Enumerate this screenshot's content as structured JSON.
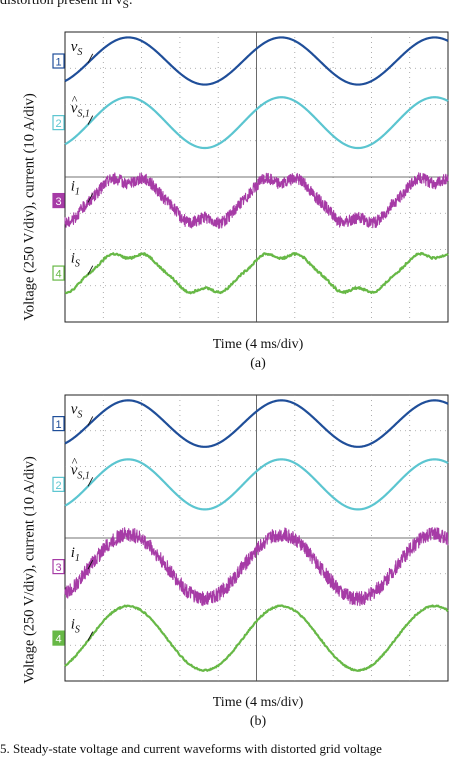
{
  "header_text": "distortion present in v",
  "header_sub": "S",
  "header_end": ".",
  "footer_text": "5.   Steady-state voltage and current waveforms with distorted grid voltage",
  "chart_data": [
    {
      "type": "line",
      "panel_label": "(a)",
      "xlabel": "Time (4 ms/div)",
      "ylabel": "Voltage (250 V/div), current (10 A/div)",
      "x_divisions": 10,
      "y_divisions": 8,
      "grid": true,
      "series": [
        {
          "channel": "1",
          "label_base": "v",
          "label_sub": "S",
          "label_hat": false,
          "color": "#1f4e99",
          "kind": "sine",
          "amplitude_div": 0.65,
          "offset_div": 3.2,
          "peak_div": 1.65,
          "cycles": 2.5,
          "noise": 0,
          "ch_filled": false
        },
        {
          "channel": "2",
          "label_base": "v",
          "label_sub": "S,1",
          "label_hat": true,
          "color": "#5bc5d0",
          "kind": "sine",
          "amplitude_div": 0.7,
          "offset_div": 1.5,
          "peak_div": 1.65,
          "cycles": 2.5,
          "noise": 0,
          "ch_filled": false
        },
        {
          "channel": "3",
          "label_base": "i",
          "label_sub": "1",
          "label_hat": false,
          "color": "#a63ba6",
          "kind": "distorted",
          "amplitude_div": 0.75,
          "offset_div": -0.65,
          "peak_div": 1.65,
          "cycles": 2.5,
          "noise": 0.16,
          "ch_filled": true
        },
        {
          "channel": "4",
          "label_base": "i",
          "label_sub": "S",
          "label_hat": false,
          "color": "#67b846",
          "kind": "distorted",
          "amplitude_div": 0.65,
          "offset_div": -2.65,
          "peak_div": 1.65,
          "cycles": 2.5,
          "noise": 0.03,
          "ch_filled": false
        }
      ]
    },
    {
      "type": "line",
      "panel_label": "(b)",
      "xlabel": "Time (4 ms/div)",
      "ylabel": "Voltage (250 V/div), current (10 A/div)",
      "x_divisions": 10,
      "y_divisions": 8,
      "grid": true,
      "series": [
        {
          "channel": "1",
          "label_base": "v",
          "label_sub": "S",
          "label_hat": false,
          "color": "#1f4e99",
          "kind": "sine",
          "amplitude_div": 0.65,
          "offset_div": 3.2,
          "peak_div": 1.65,
          "cycles": 2.5,
          "noise": 0,
          "ch_filled": false
        },
        {
          "channel": "2",
          "label_base": "v",
          "label_sub": "S,1",
          "label_hat": true,
          "color": "#5bc5d0",
          "kind": "sine",
          "amplitude_div": 0.7,
          "offset_div": 1.5,
          "peak_div": 1.65,
          "cycles": 2.5,
          "noise": 0,
          "ch_filled": false
        },
        {
          "channel": "3",
          "label_base": "i",
          "label_sub": "1",
          "label_hat": false,
          "color": "#a63ba6",
          "kind": "sine",
          "amplitude_div": 0.9,
          "offset_div": -0.8,
          "peak_div": 1.65,
          "cycles": 2.5,
          "noise": 0.2,
          "ch_filled": false
        },
        {
          "channel": "4",
          "label_base": "i",
          "label_sub": "S",
          "label_hat": false,
          "color": "#67b846",
          "kind": "sine",
          "amplitude_div": 0.9,
          "offset_div": -2.8,
          "peak_div": 1.65,
          "cycles": 2.5,
          "noise": 0.02,
          "ch_filled": true
        }
      ]
    }
  ]
}
